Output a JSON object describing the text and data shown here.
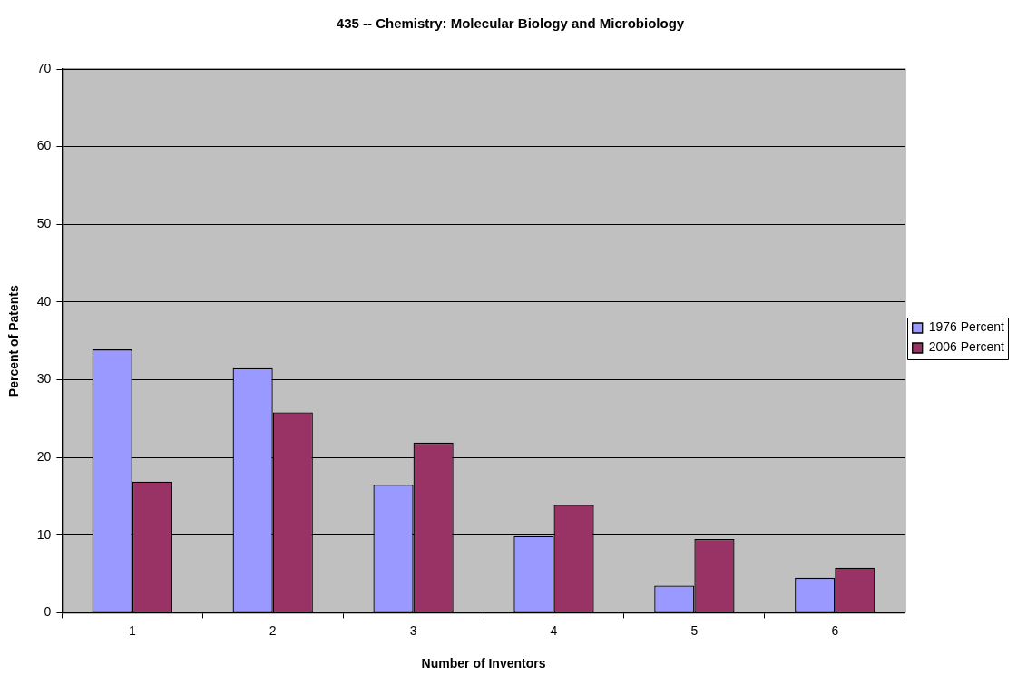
{
  "chart_data": {
    "type": "bar",
    "title": "435 -- Chemistry: Molecular Biology and Microbiology",
    "xlabel": "Number of Inventors",
    "ylabel": "Percent of Patents",
    "categories": [
      "1",
      "2",
      "3",
      "4",
      "5",
      "6"
    ],
    "series": [
      {
        "name": "1976 Percent",
        "color": "#9999ff",
        "values": [
          33.9,
          31.5,
          16.5,
          9.9,
          3.5,
          4.5
        ]
      },
      {
        "name": "2006 Percent",
        "color": "#993366",
        "values": [
          16.9,
          25.8,
          21.9,
          13.9,
          9.5,
          5.8
        ]
      }
    ],
    "ylim": [
      0,
      70
    ],
    "yticks": [
      0,
      10,
      20,
      30,
      40,
      50,
      60,
      70
    ],
    "grid": "y",
    "legend": "right"
  }
}
